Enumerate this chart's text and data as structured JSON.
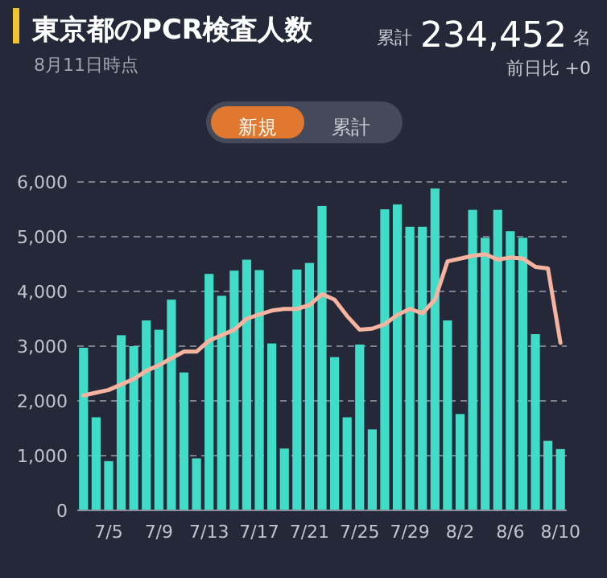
{
  "chart_data": {
    "type": "bar",
    "title": "東京都のPCR検査人数",
    "subtitle": "8月11日時点",
    "annotations": [
      "累計",
      "234,452",
      "名",
      "前日比 +0",
      "新規",
      "累計"
    ],
    "categories": [
      null,
      null,
      "7/5",
      null,
      null,
      null,
      "7/9",
      null,
      null,
      null,
      "7/13",
      null,
      null,
      null,
      "7/17",
      null,
      null,
      null,
      "7/21",
      null,
      null,
      null,
      "7/25",
      null,
      null,
      null,
      "7/29",
      null,
      null,
      null,
      "8/2",
      null,
      null,
      null,
      "8/6",
      null,
      null,
      null,
      "8/10"
    ],
    "series": [
      {
        "color": "#40dcc8",
        "values": [
          2970,
          1700,
          900,
          3200,
          3000,
          3470,
          3300,
          3850,
          2520,
          950,
          4320,
          3920,
          4380,
          4580,
          4390,
          3050,
          1130,
          4400,
          4520,
          5560,
          2800,
          1700,
          3030,
          1480,
          5500,
          5590,
          5180,
          5180,
          5880,
          3470,
          1760,
          5490,
          4980,
          5490,
          5100,
          4980,
          3220,
          1270,
          1120
        ]
      },
      {
        "type": "line",
        "color": "#f6b4a0",
        "values": [
          2100,
          2150,
          2200,
          2300,
          2400,
          2550,
          2650,
          2780,
          2900,
          2900,
          3100,
          3200,
          3300,
          3500,
          3580,
          3650,
          3680,
          3680,
          3750,
          3950,
          3850,
          3550,
          3300,
          3320,
          3400,
          3570,
          3680,
          3600,
          3850,
          4550,
          4600,
          4650,
          4680,
          4580,
          4620,
          4600,
          4450,
          4420,
          3060
        ]
      }
    ],
    "ylim": [
      0,
      6000
    ],
    "yticks": [
      0,
      {
        "value": 1000,
        "label": "1,000"
      },
      {
        "value": 2000,
        "label": "2,000"
      },
      {
        "value": 3000,
        "label": "3,000"
      },
      {
        "value": 4000,
        "label": "4,000"
      },
      {
        "value": 5000,
        "label": "5,000"
      },
      {
        "value": 6000,
        "label": "6,000"
      }
    ],
    "grid": "y",
    "line_style": "solid",
    "marker": "none"
  }
}
